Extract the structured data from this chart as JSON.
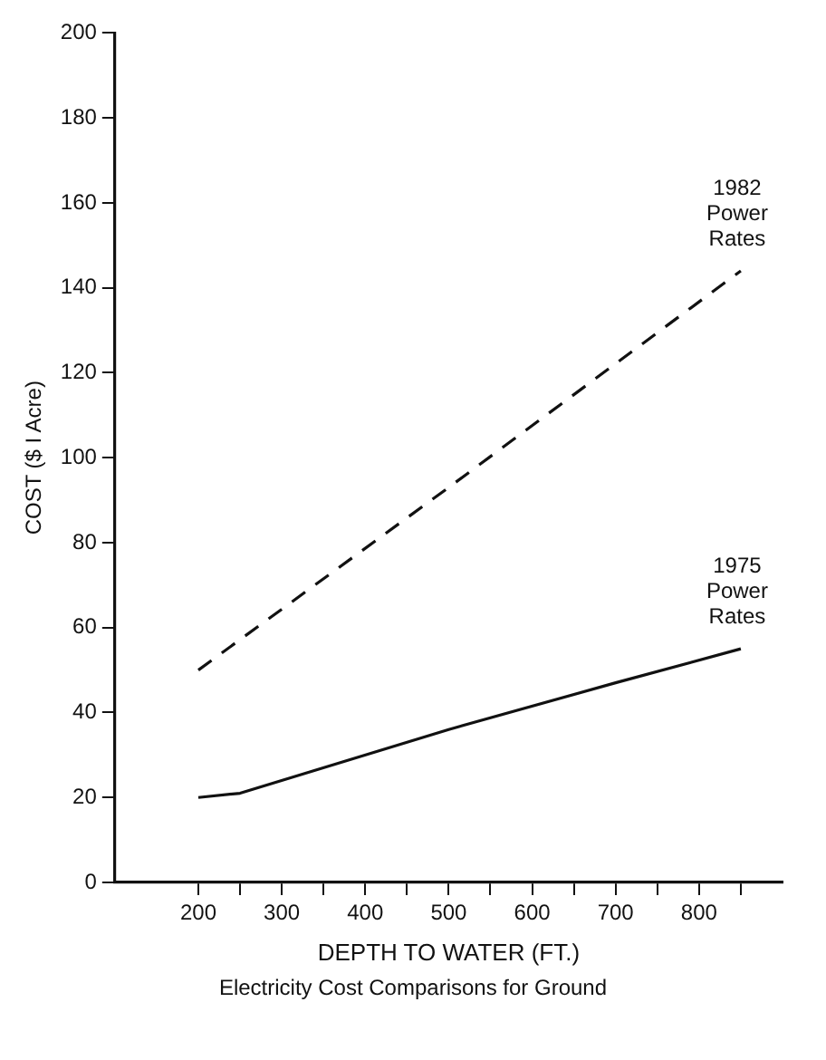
{
  "chart_data": {
    "type": "line",
    "xlabel": "DEPTH TO WATER (FT.)",
    "ylabel": "COST ($ I Acre)",
    "annotations": [
      "Electricity Cost Comparisons for Ground"
    ],
    "xlim": [
      100,
      900
    ],
    "xticks": [
      200,
      {
        "value": 250,
        "label": null
      },
      300,
      {
        "value": 350,
        "label": null
      },
      400,
      {
        "value": 450,
        "label": null
      },
      500,
      {
        "value": 550,
        "label": null
      },
      600,
      {
        "value": 650,
        "label": null
      },
      700,
      {
        "value": 750,
        "label": null
      },
      800,
      {
        "value": 850,
        "label": null
      }
    ],
    "ylim": [
      0,
      200
    ],
    "yticks": [
      0,
      20,
      40,
      60,
      80,
      100,
      120,
      140,
      160,
      180,
      200
    ],
    "grid": false,
    "legend": false,
    "marker": "none",
    "series": [
      {
        "name": "1982 Power Rates",
        "color": "#111111",
        "line_style": "dashed",
        "x": [
          200,
          500,
          850
        ],
        "values": [
          50,
          93,
          144
        ]
      },
      {
        "name": "1975 Power Rates",
        "color": "#111111",
        "line_style": "solid",
        "x": [
          200,
          250,
          500,
          700,
          850
        ],
        "values": [
          20,
          21,
          36,
          47,
          55
        ]
      }
    ]
  }
}
